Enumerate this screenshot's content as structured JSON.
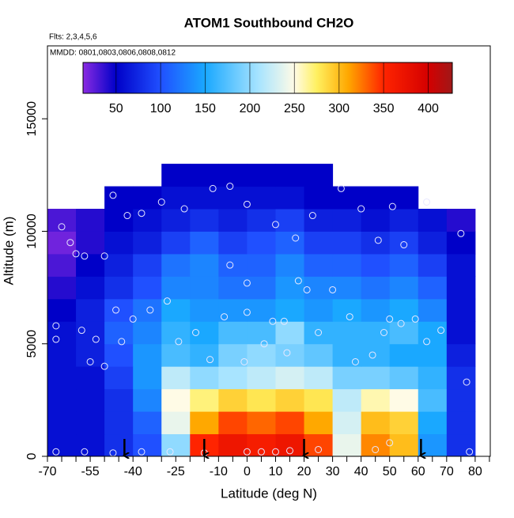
{
  "chart_data": {
    "type": "heatmap",
    "title": "ATOM1 Southbound CH2O",
    "subtitle": "Flts: 2,3,4,5,6",
    "annotation": "MMDD: 0801,0803,0806,0808,0812",
    "xlabel": "Latitude (deg N)",
    "ylabel": "Altitude (m)",
    "xlim": [
      -70,
      85.3
    ],
    "ylim": [
      0,
      18240
    ],
    "xticks": [
      -70,
      -55,
      -40,
      -25,
      -10,
      0,
      10,
      20,
      30,
      40,
      50,
      60,
      70,
      80
    ],
    "xminorticks": [
      -65,
      -60,
      -50,
      -45,
      -35,
      -30,
      -20,
      -15,
      -5,
      5,
      15,
      25,
      35,
      45,
      55,
      65,
      75,
      85
    ],
    "yticks": [
      0,
      5000,
      10000,
      15000
    ],
    "colorlim": [
      13,
      427
    ],
    "colorticks": [
      50,
      100,
      150,
      200,
      250,
      300,
      350,
      400
    ],
    "colormap": [
      {
        "value": 13,
        "color": "#8a2be2"
      },
      {
        "value": 50,
        "color": "#0000c8"
      },
      {
        "value": 100,
        "color": "#2050ff"
      },
      {
        "value": 150,
        "color": "#1aa8ff"
      },
      {
        "value": 210,
        "color": "#a8e4ff"
      },
      {
        "value": 250,
        "color": "#fffbe6"
      },
      {
        "value": 275,
        "color": "#fff060"
      },
      {
        "value": 310,
        "color": "#ffa800"
      },
      {
        "value": 350,
        "color": "#ff2400"
      },
      {
        "value": 400,
        "color": "#d40000"
      },
      {
        "value": 427,
        "color": "#a01818"
      }
    ],
    "heatmap": {
      "x": [
        -65,
        -55,
        -45,
        -35,
        -25,
        -15,
        -5,
        5,
        15,
        25,
        35,
        45,
        55,
        65,
        75
      ],
      "y": [
        500,
        1500,
        2500,
        3500,
        4500,
        5500,
        6500,
        7500,
        8500,
        9500,
        10500,
        11500,
        12500
      ],
      "z": [
        [
          60,
          60,
          80,
          100,
          200,
          350,
          370,
          360,
          370,
          340,
          240,
          320,
          300,
          140,
          80
        ],
        [
          60,
          60,
          80,
          110,
          240,
          310,
          340,
          330,
          340,
          310,
          230,
          300,
          290,
          150,
          80
        ],
        [
          60,
          60,
          80,
          130,
          250,
          270,
          290,
          280,
          290,
          280,
          220,
          260,
          250,
          170,
          80
        ],
        [
          60,
          60,
          90,
          140,
          220,
          200,
          210,
          220,
          230,
          220,
          190,
          190,
          180,
          160,
          80
        ],
        [
          60,
          70,
          100,
          140,
          170,
          160,
          190,
          200,
          190,
          180,
          160,
          160,
          150,
          150,
          70
        ],
        [
          60,
          70,
          110,
          130,
          160,
          150,
          170,
          170,
          200,
          160,
          160,
          160,
          170,
          150,
          60
        ],
        [
          50,
          70,
          100,
          120,
          150,
          140,
          140,
          140,
          150,
          140,
          150,
          140,
          150,
          130,
          60
        ],
        [
          40,
          60,
          80,
          100,
          130,
          130,
          120,
          120,
          140,
          130,
          130,
          120,
          130,
          110,
          60
        ],
        [
          30,
          50,
          70,
          90,
          120,
          130,
          110,
          110,
          130,
          110,
          110,
          100,
          110,
          90,
          60
        ],
        [
          20,
          40,
          60,
          70,
          90,
          110,
          90,
          100,
          110,
          90,
          90,
          80,
          90,
          70,
          50
        ],
        [
          30,
          40,
          50,
          60,
          70,
          80,
          70,
          80,
          90,
          70,
          70,
          60,
          70,
          60,
          40
        ],
        [
          null,
          null,
          50,
          50,
          60,
          60,
          60,
          60,
          60,
          50,
          50,
          50,
          50,
          null,
          null
        ],
        [
          null,
          null,
          null,
          null,
          50,
          50,
          50,
          50,
          50,
          50,
          null,
          null,
          null,
          null,
          null
        ]
      ]
    },
    "points": {
      "x": [
        -65,
        -62,
        -60,
        -57,
        -50,
        -47,
        -42,
        -37,
        -30,
        -22,
        -12,
        -6,
        0,
        10,
        17,
        23,
        33,
        40,
        46,
        51,
        55,
        63,
        75,
        -67,
        -67,
        -58,
        -55,
        -53,
        -50,
        -46,
        -44,
        -40,
        -34,
        -28,
        -24,
        -18,
        -13,
        -8,
        -6,
        0,
        0,
        -1,
        6,
        9,
        13,
        14,
        18,
        21,
        25,
        30,
        36,
        38,
        44,
        48,
        50,
        54,
        59,
        63,
        68,
        77,
        -67,
        -57,
        -47,
        -37,
        -27,
        -15,
        0,
        5,
        10,
        15,
        25,
        45,
        50,
        78
      ],
      "y": [
        10200,
        9500,
        9000,
        8900,
        8900,
        11600,
        10700,
        10800,
        11300,
        11000,
        11900,
        12000,
        11200,
        10300,
        9700,
        10700,
        11900,
        11000,
        9600,
        11100,
        9400,
        11300,
        9900,
        5800,
        5200,
        5600,
        4200,
        5200,
        4000,
        6500,
        5100,
        6100,
        6500,
        6900,
        5100,
        5500,
        4300,
        6200,
        8500,
        7700,
        6400,
        4200,
        5000,
        6000,
        6000,
        4600,
        7800,
        7400,
        5500,
        7400,
        6200,
        4200,
        4500,
        5500,
        6100,
        5900,
        6100,
        5100,
        5600,
        3300,
        200,
        200,
        150,
        200,
        200,
        150,
        200,
        200,
        200,
        250,
        300,
        300,
        600,
        200
      ]
    },
    "arrows": [
      -43,
      -15,
      20,
      61
    ]
  }
}
